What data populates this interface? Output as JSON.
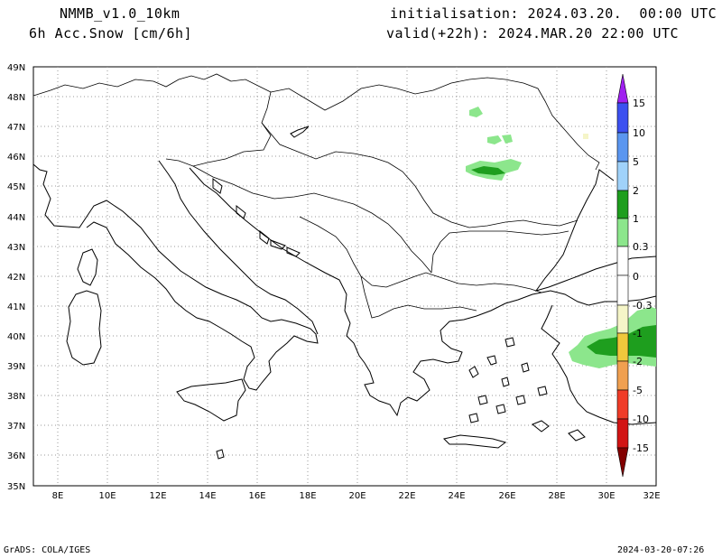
{
  "header": {
    "model": "NMMB_v1.0_10km",
    "field": "6h Acc.Snow [cm/6h]",
    "init": "initialisation: 2024.03.20.  00:00 UTC",
    "valid": "valid(+22h): 2024.MAR.20 22:00 UTC"
  },
  "map": {
    "lat_ticks": [
      "49N",
      "48N",
      "47N",
      "46N",
      "45N",
      "44N",
      "43N",
      "42N",
      "41N",
      "40N",
      "39N",
      "38N",
      "37N",
      "36N",
      "35N"
    ],
    "lon_ticks": [
      "8E",
      "10E",
      "12E",
      "14E",
      "16E",
      "18E",
      "20E",
      "22E",
      "24E",
      "26E",
      "28E",
      "30E",
      "32E"
    ],
    "grid": "dotted",
    "region": "Italy, Balkans, Romania, Greece, western Turkey"
  },
  "legend": {
    "labels": [
      "15",
      "10",
      "5",
      "2",
      "1",
      "0.3",
      "0",
      "-0.3",
      "-1",
      "-2",
      "-5",
      "-10",
      "-15"
    ],
    "colors": {
      "15": "#a020f0",
      "10": "#3c50f0",
      "5": "#5a96f0",
      "2": "#a0d2fa",
      "1": "#1e9e1e",
      "0.3": "#8ce68c",
      "n0.3": "#f5f5c8",
      "n1": "#f0c83c",
      "n2": "#f0a050",
      "n5": "#f03c28",
      "n10": "#d21414",
      "n15": "#820000"
    }
  },
  "footer": {
    "left": "GrADS: COLA/IGES",
    "right": "2024-03-20-07:26"
  }
}
